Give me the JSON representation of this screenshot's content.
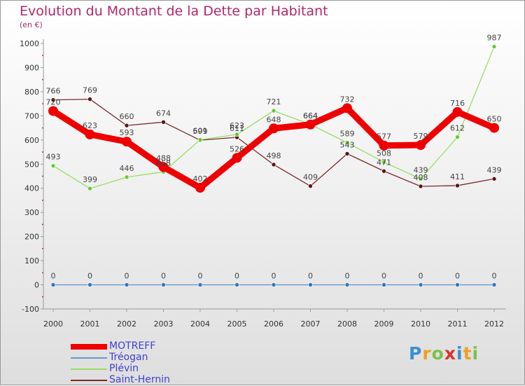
{
  "chart_data": {
    "type": "line",
    "title": "Evolution du Montant de la Dette par Habitant",
    "subtitle": "(en €)",
    "x": [
      "2000",
      "2001",
      "2002",
      "2003",
      "2004",
      "2005",
      "2006",
      "2007",
      "2008",
      "2009",
      "2010",
      "2011",
      "2012"
    ],
    "ylim": [
      -100,
      1000
    ],
    "yticks": [
      "-100",
      "0",
      "100",
      "200",
      "300",
      "400",
      "500",
      "600",
      "700",
      "800",
      "900",
      "1000"
    ],
    "grid": false,
    "legend_position": "bottom-left",
    "series": [
      {
        "name": "Saint-Hernin",
        "color": "#7a2a2a",
        "marker": "#5a1515",
        "values": [
          766,
          769,
          660,
          674,
          599,
          611,
          498,
          409,
          543,
          471,
          408,
          411,
          439
        ],
        "labels": [
          "766",
          "769",
          "660",
          "674",
          "599",
          "611",
          "498",
          "409",
          "543",
          "471",
          "408",
          "411",
          "439"
        ]
      },
      {
        "name": "Plévin",
        "color": "#99dd66",
        "marker": "#66cc33",
        "values": [
          493,
          399,
          446,
          468,
          601,
          623,
          721,
          664,
          589,
          508,
          439,
          612,
          987
        ],
        "labels": [
          "493",
          "399",
          "446",
          "468",
          "601",
          "623",
          "721",
          "664",
          "589",
          "508",
          "439",
          "612",
          "987"
        ]
      },
      {
        "name": "Tréogan",
        "color": "#6699cc",
        "marker": "#3377bb",
        "values": [
          0,
          0,
          0,
          0,
          0,
          0,
          0,
          0,
          0,
          0,
          0,
          0,
          0
        ],
        "labels": [
          "0",
          "0",
          "0",
          "0",
          "0",
          "0",
          "0",
          "0",
          "0",
          "0",
          "0",
          "0",
          "0"
        ]
      },
      {
        "name": "MOTREFF",
        "color": "#ee0000",
        "marker": "#ee0000",
        "values": [
          720,
          623,
          593,
          488,
          402,
          526,
          648,
          664,
          732,
          577,
          579,
          716,
          650
        ],
        "labels": [
          "720",
          "623",
          "593",
          "488",
          "402",
          "526",
          "648",
          "664",
          "732",
          "577",
          "579",
          "716",
          "650"
        ]
      }
    ]
  },
  "legend": {
    "items": [
      {
        "label": "MOTREFF",
        "color": "#ee0000",
        "thickness": 8
      },
      {
        "label": "Tréogan",
        "color": "#6699cc",
        "thickness": 2
      },
      {
        "label": "Plévin",
        "color": "#99dd66",
        "thickness": 2
      },
      {
        "label": "Saint-Hernin",
        "color": "#7a2a2a",
        "thickness": 2
      }
    ]
  },
  "logo": {
    "letters": [
      {
        "char": "P",
        "color": "#3a8fd0"
      },
      {
        "char": "r",
        "color": "#f0a020"
      },
      {
        "char": "o",
        "color": "#7cc04a"
      },
      {
        "char": "x",
        "color": "#e03030"
      },
      {
        "char": "i",
        "color": "#3a8fd0"
      },
      {
        "char": "t",
        "color": "#f0a020"
      },
      {
        "char": "i",
        "color": "#7cc04a"
      }
    ]
  }
}
